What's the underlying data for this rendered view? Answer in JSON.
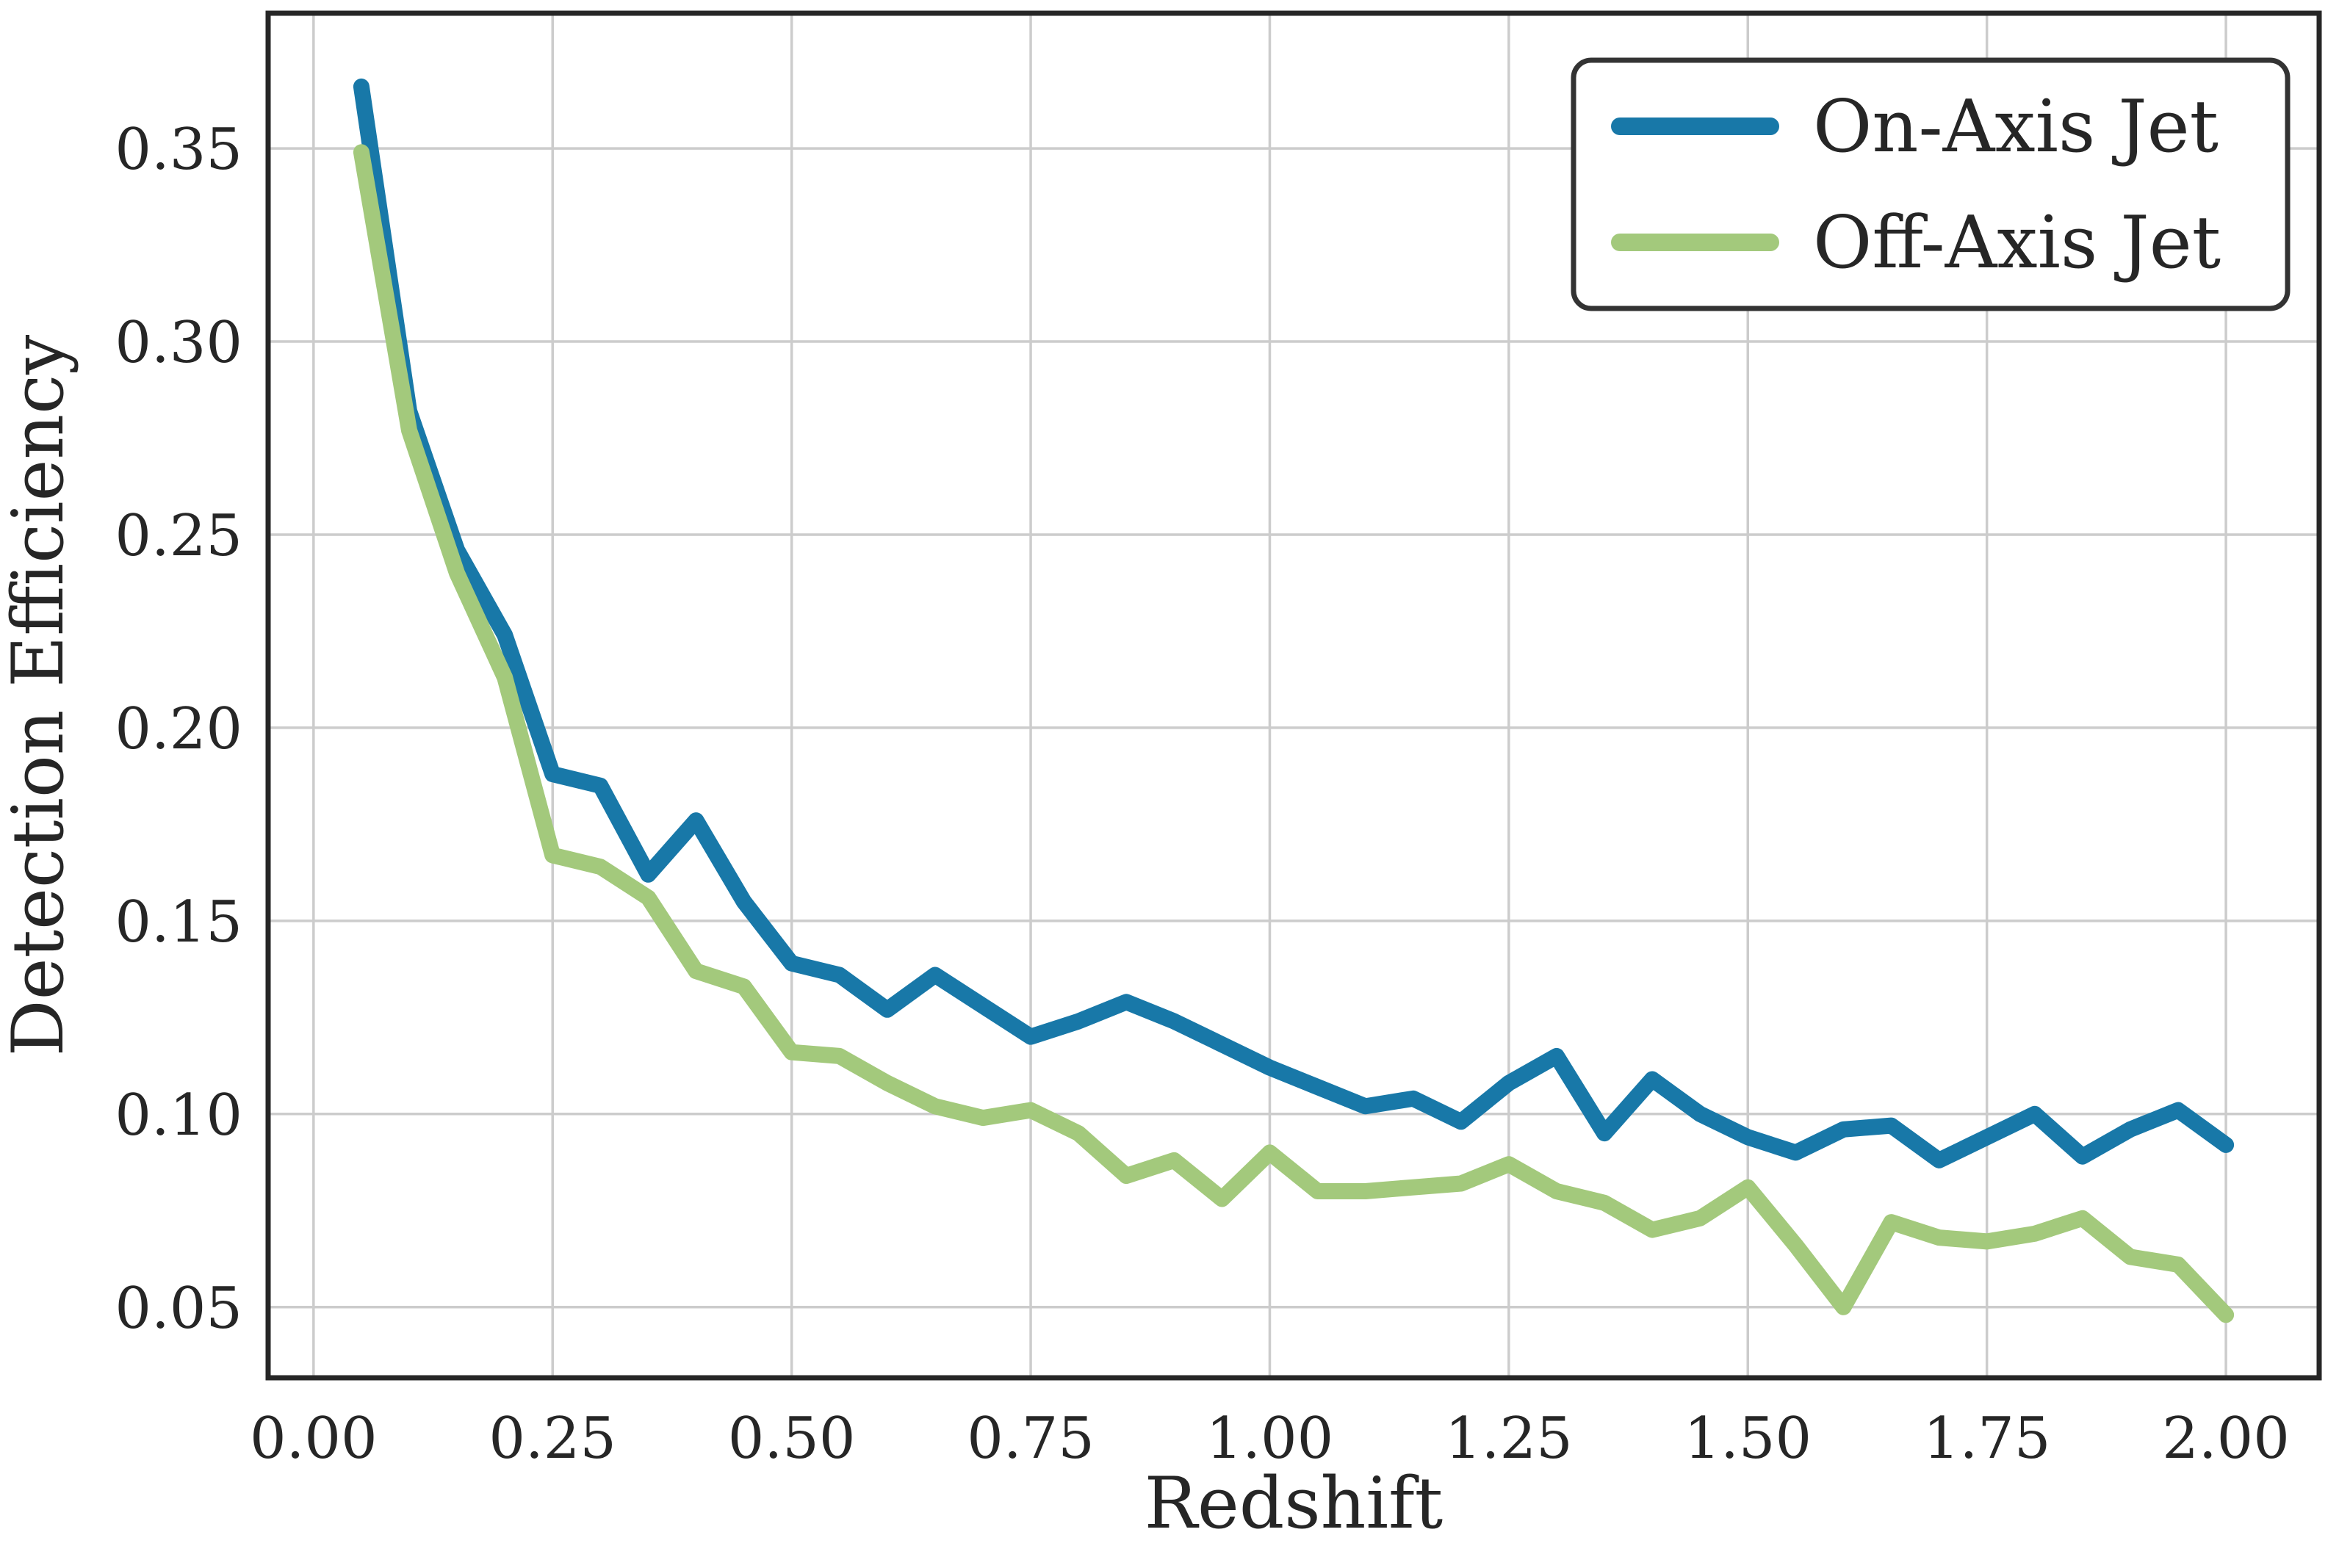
{
  "chart_data": {
    "type": "line",
    "title": "",
    "xlabel": "Redshift",
    "ylabel": "Detection Efficiency",
    "grid": true,
    "legend_position": "upper right",
    "xlim": [
      -0.0475,
      2.0975
    ],
    "ylim": [
      0.0317,
      0.385
    ],
    "xticks": [
      {
        "value": 0.0,
        "label": "0.00"
      },
      {
        "value": 0.25,
        "label": "0.25"
      },
      {
        "value": 0.5,
        "label": "0.50"
      },
      {
        "value": 0.75,
        "label": "0.75"
      },
      {
        "value": 1.0,
        "label": "1.00"
      },
      {
        "value": 1.25,
        "label": "1.25"
      },
      {
        "value": 1.5,
        "label": "1.50"
      },
      {
        "value": 1.75,
        "label": "1.75"
      },
      {
        "value": 2.0,
        "label": "2.00"
      }
    ],
    "yticks": [
      {
        "value": 0.05,
        "label": "0.05"
      },
      {
        "value": 0.1,
        "label": "0.10"
      },
      {
        "value": 0.15,
        "label": "0.15"
      },
      {
        "value": 0.2,
        "label": "0.20"
      },
      {
        "value": 0.25,
        "label": "0.25"
      },
      {
        "value": 0.3,
        "label": "0.30"
      },
      {
        "value": 0.35,
        "label": "0.35"
      }
    ],
    "x": [
      0.05,
      0.1,
      0.15,
      0.2,
      0.25,
      0.3,
      0.35,
      0.4,
      0.45,
      0.5,
      0.55,
      0.6,
      0.65,
      0.7,
      0.75,
      0.8,
      0.85,
      0.9,
      0.95,
      1.0,
      1.05,
      1.1,
      1.15,
      1.2,
      1.25,
      1.3,
      1.35,
      1.4,
      1.45,
      1.5,
      1.55,
      1.6,
      1.65,
      1.7,
      1.75,
      1.8,
      1.85,
      1.9,
      1.95,
      2.0
    ],
    "series": [
      {
        "name": "On-Axis Jet",
        "color": "#1878a8",
        "values": [
          0.366,
          0.282,
          0.246,
          0.224,
          0.188,
          0.185,
          0.162,
          0.176,
          0.155,
          0.139,
          0.136,
          0.127,
          0.136,
          0.128,
          0.12,
          0.124,
          0.129,
          0.124,
          0.118,
          0.112,
          0.107,
          0.102,
          0.104,
          0.098,
          0.108,
          0.115,
          0.095,
          0.109,
          0.1,
          0.094,
          0.09,
          0.096,
          0.097,
          0.088,
          0.094,
          0.1,
          0.089,
          0.096,
          0.101,
          0.092
        ]
      },
      {
        "name": "Off-Axis Jet",
        "color": "#a3c97c",
        "values": [
          0.349,
          0.277,
          0.24,
          0.213,
          0.167,
          0.164,
          0.156,
          0.137,
          0.133,
          0.116,
          0.115,
          0.108,
          0.102,
          0.099,
          0.101,
          0.095,
          0.084,
          0.088,
          0.078,
          0.09,
          0.08,
          0.08,
          0.081,
          0.082,
          0.087,
          0.08,
          0.077,
          0.07,
          0.073,
          0.081,
          0.066,
          0.05,
          0.072,
          0.068,
          0.067,
          0.069,
          0.073,
          0.063,
          0.061,
          0.048
        ]
      }
    ],
    "colors": {
      "spine": "#262626",
      "grid": "#cccccc",
      "text": "#262626",
      "legend_border": "#333333",
      "background": "#ffffff"
    }
  }
}
